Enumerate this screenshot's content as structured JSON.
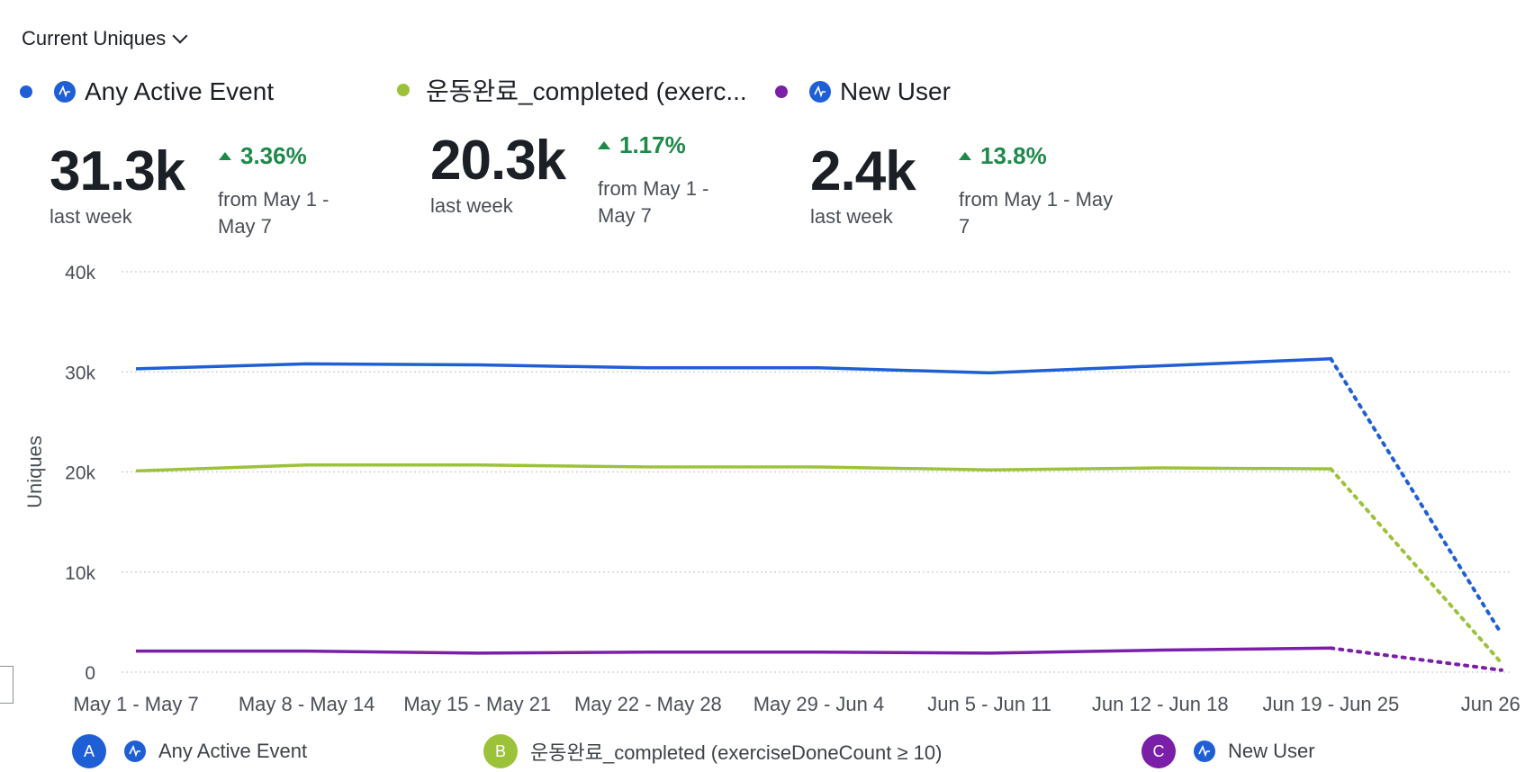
{
  "metric_selector": {
    "label": "Current Uniques"
  },
  "legend_top": [
    {
      "name": "Any Active Event",
      "color": "#1f5fd6",
      "icon": "amplitude-icon"
    },
    {
      "name": "운동완료_completed (exerc...",
      "color": "#9cc23a",
      "icon": ""
    },
    {
      "name": "New User",
      "color": "#7a1fa8",
      "icon": "amplitude-icon"
    }
  ],
  "stats": [
    {
      "value": "31.3k",
      "sub": "last week",
      "delta": "3.36%",
      "from": [
        "from May 1 -",
        "May 7"
      ]
    },
    {
      "value": "20.3k",
      "sub": "last week",
      "delta": "1.17%",
      "from": [
        "from May 1 -",
        "May 7"
      ]
    },
    {
      "value": "2.4k",
      "sub": "last week",
      "delta": "13.8%",
      "from": [
        "from May 1 - May",
        "7"
      ]
    }
  ],
  "legend_bottom": [
    {
      "letter": "A",
      "name": "Any Active Event",
      "color": "#1f5fd6"
    },
    {
      "letter": "B",
      "name": "운동완료_completed (exerciseDoneCount ≥ 10)",
      "color": "#9cc23a"
    },
    {
      "letter": "C",
      "name": "New User",
      "color": "#7a1fa8"
    }
  ],
  "chart_data": {
    "type": "line",
    "ylabel": "Uniques",
    "ylim": [
      0,
      40000
    ],
    "yticks": [
      0,
      10000,
      20000,
      30000,
      40000
    ],
    "ytick_labels": [
      "0",
      "10k",
      "20k",
      "30k",
      "40k"
    ],
    "categories": [
      "May 1 - May 7",
      "May 8 - May 14",
      "May 15 - May 21",
      "May 22 - May 28",
      "May 29 - Jun 4",
      "Jun 5 - Jun 11",
      "Jun 12 - Jun 18",
      "Jun 19 - Jun 25",
      "Jun 26 ..."
    ],
    "incomplete_last_period": true,
    "grid": true,
    "series": [
      {
        "name": "Any Active Event",
        "color": "#1f5fd6",
        "values": [
          30300,
          30800,
          30700,
          30400,
          30400,
          29900,
          30600,
          31300,
          3800
        ]
      },
      {
        "name": "운동완료_completed (exerciseDoneCount ≥ 10)",
        "color": "#9cc23a",
        "values": [
          20100,
          20700,
          20700,
          20500,
          20500,
          20200,
          20400,
          20300,
          900
        ]
      },
      {
        "name": "New User",
        "color": "#7a1fa8",
        "values": [
          2100,
          2100,
          1900,
          2000,
          2000,
          1900,
          2200,
          2400,
          200
        ]
      }
    ]
  }
}
